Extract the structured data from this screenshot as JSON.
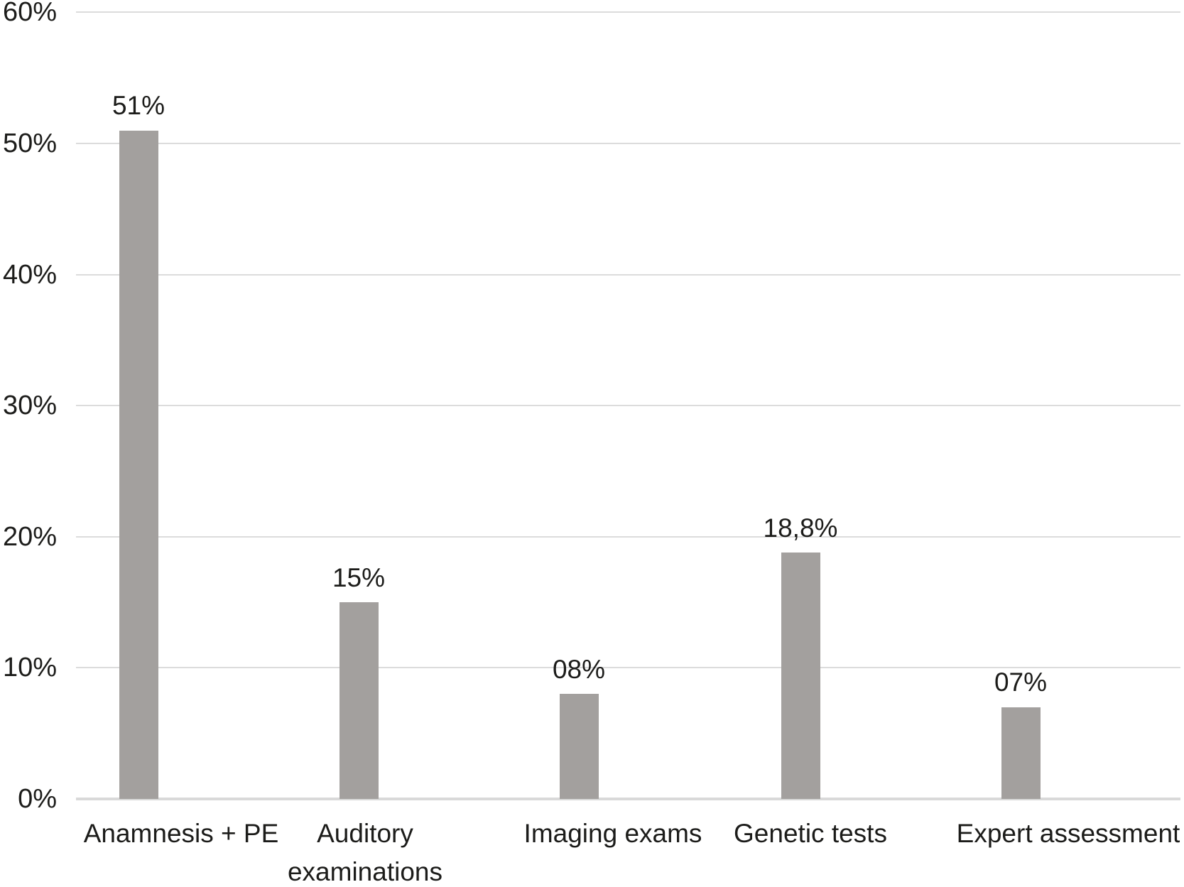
{
  "chart_data": {
    "type": "bar",
    "title": "",
    "xlabel": "",
    "ylabel": "",
    "categories": [
      "Anamnesis + PE",
      "Auditory examinations",
      "Imaging exams",
      "Genetic tests",
      "Expert assessment"
    ],
    "values": [
      51,
      15,
      8,
      18.8,
      7
    ],
    "value_labels": [
      "51%",
      "15%",
      "08%",
      "18,8%",
      "07%"
    ],
    "y_tick_values": [
      0,
      10,
      20,
      30,
      40,
      50,
      60
    ],
    "y_tick_labels": [
      "0%",
      "10%",
      "20%",
      "30%",
      "40%",
      "50%",
      "60%"
    ],
    "ylim": [
      0,
      60
    ],
    "grid": true,
    "legend": "none",
    "bar_color": "#a3a09e",
    "gridline_color": "#dcdcdc",
    "axis_line_color": "#d9d9d9",
    "text_color": "#1c1c1a",
    "background_color": "#ffffff"
  }
}
